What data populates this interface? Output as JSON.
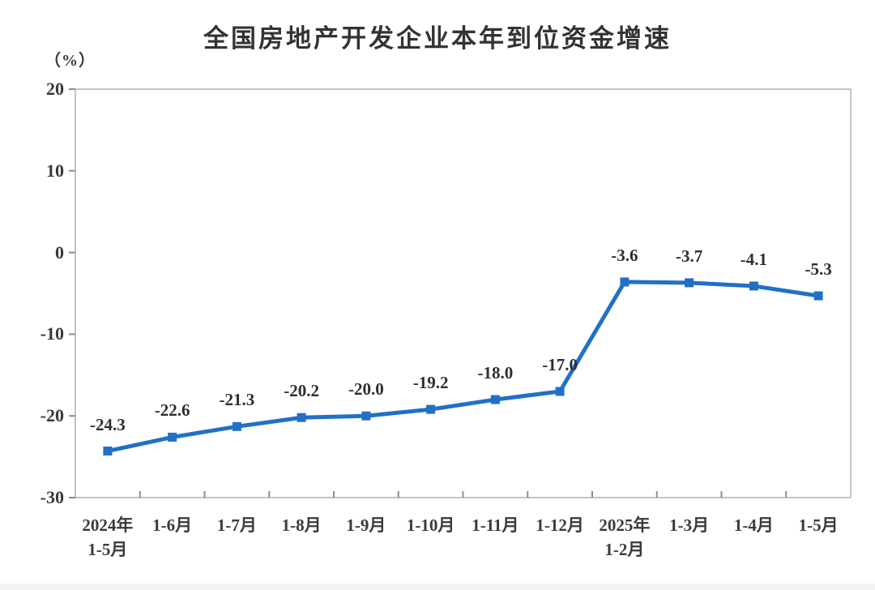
{
  "page": {
    "background_color": "#ffffff",
    "footer_strip_color": "#f4f3f0"
  },
  "chart_data": {
    "type": "line",
    "title": "全国房地产开发企业本年到位资金增速",
    "unit_label": "（%）",
    "categories": [
      [
        "2024年",
        "1-5月"
      ],
      [
        "1-6月"
      ],
      [
        "1-7月"
      ],
      [
        "1-8月"
      ],
      [
        "1-9月"
      ],
      [
        "1-10月"
      ],
      [
        "1-11月"
      ],
      [
        "1-12月"
      ],
      [
        "2025年",
        "1-2月"
      ],
      [
        "1-3月"
      ],
      [
        "1-4月"
      ],
      [
        "1-5月"
      ]
    ],
    "series": [
      {
        "name": "本年到位资金增速",
        "values": [
          -24.3,
          -22.6,
          -21.3,
          -20.2,
          -20.0,
          -19.2,
          -18.0,
          -17.0,
          -3.6,
          -3.7,
          -4.1,
          -5.3
        ],
        "data_labels": [
          "-24.3",
          "-22.6",
          "-21.3",
          "-20.2",
          "-20.0",
          "-19.2",
          "-18.0",
          "-17.0",
          "-3.6",
          "-3.7",
          "-4.1",
          "-5.3"
        ]
      }
    ],
    "y_ticks": [
      20,
      10,
      0,
      -10,
      -20,
      -30
    ],
    "ylim": [
      -30,
      20
    ],
    "grid": false,
    "legend_position": "none",
    "line_color": "#2170C6",
    "marker": "square",
    "marker_size": 11,
    "line_width": 5,
    "axis_box_color": "#b5b5b5",
    "tick_color": "#8f8f8f",
    "text_color": "#3a3a3a"
  }
}
